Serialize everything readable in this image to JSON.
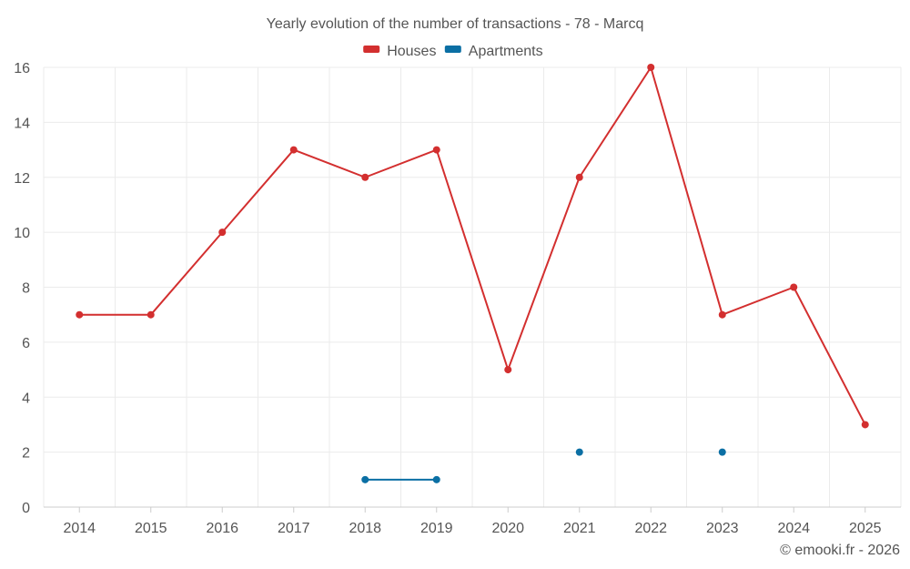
{
  "chart_data": {
    "type": "line",
    "title": "Yearly evolution of the number of transactions - 78 - Marcq",
    "categories": [
      "2014",
      "2015",
      "2016",
      "2017",
      "2018",
      "2019",
      "2020",
      "2021",
      "2022",
      "2023",
      "2024",
      "2025"
    ],
    "ylim": [
      0,
      16
    ],
    "yticks": [
      0,
      2,
      4,
      6,
      8,
      10,
      12,
      14,
      16
    ],
    "grid": true,
    "legend_position": "top-center",
    "series": [
      {
        "name": "Houses",
        "color": "#d32f2f",
        "values": [
          7,
          7,
          10,
          13,
          12,
          13,
          5,
          12,
          16,
          7,
          8,
          3
        ]
      },
      {
        "name": "Apartments",
        "color": "#0b6fa4",
        "values": [
          null,
          null,
          null,
          null,
          1,
          1,
          null,
          2,
          null,
          2,
          null,
          null
        ]
      }
    ],
    "xlabel": "",
    "ylabel": ""
  },
  "credit": "© emooki.fr - 2026"
}
